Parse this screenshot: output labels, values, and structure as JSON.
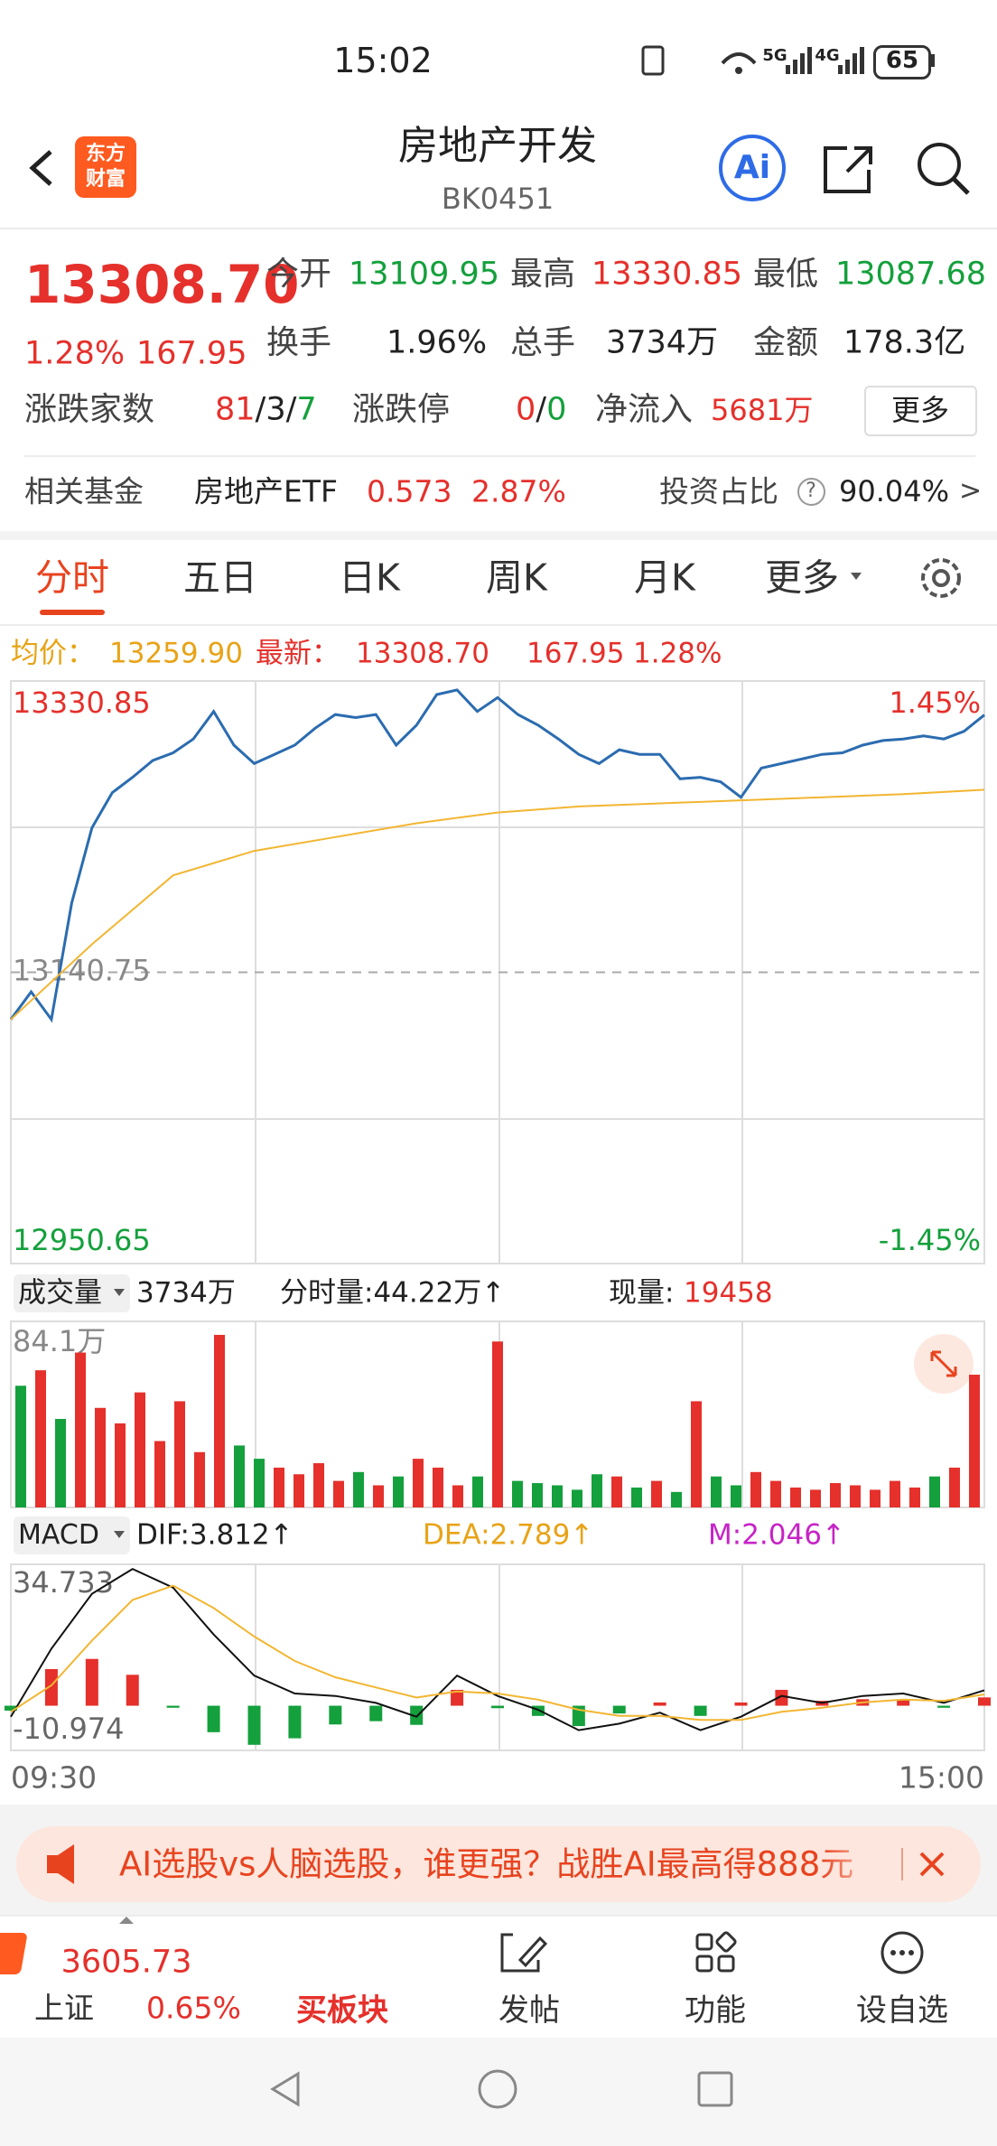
{
  "status_bar": {
    "time": "15:02",
    "network": [
      "5G",
      "4G"
    ],
    "battery": "65"
  },
  "header": {
    "logo": [
      "东方",
      "财富"
    ],
    "title": "房地产开发",
    "code": "BK0451",
    "ai_button": "Ai"
  },
  "quote": {
    "price": "13308.70",
    "change_pct": "1.28%",
    "change": "167.95",
    "open": {
      "label": "今开",
      "value": "13109.95"
    },
    "high": {
      "label": "最高",
      "value": "13330.85"
    },
    "low": {
      "label": "最低",
      "value": "13087.68"
    },
    "turnover": {
      "label": "换手",
      "value": "1.96%"
    },
    "volume": {
      "label": "总手",
      "value": "3734万"
    },
    "amount": {
      "label": "金额",
      "value": "178.3亿"
    },
    "breadth": {
      "label": "涨跌家数",
      "parts": [
        "81",
        "/",
        "3",
        "/",
        "7"
      ]
    },
    "limits": {
      "label": "涨跌停",
      "parts": [
        "0",
        "/",
        "0"
      ]
    },
    "net_inflow": {
      "label": "净流入",
      "value": "5681万"
    },
    "more_button": "更多"
  },
  "fund": {
    "label": "相关基金",
    "name": "房地产ETF",
    "price": "0.573",
    "change_pct": "2.87%",
    "share_label": "投资占比",
    "help": "?",
    "share": "90.04%",
    "arrow": ">"
  },
  "tabs": {
    "items": [
      "分时",
      "五日",
      "日K",
      "周K",
      "月K",
      "更多"
    ],
    "active": 0
  },
  "info_row": {
    "avg_label": "均价：",
    "avg": "13259.90",
    "last_label": "最新：",
    "last": "13308.70",
    "change": "167.95",
    "change_pct": "1.28%"
  },
  "volume_header": {
    "selector": "成交量",
    "total": "3734万",
    "minute": "分时量:44.22万↑",
    "current_label": "现量:",
    "current": "19458"
  },
  "macd_header": {
    "selector": "MACD",
    "dif": "DIF:3.812↑",
    "dea": "DEA:2.789↑",
    "m": "M:2.046↑"
  },
  "time_axis": [
    "09:30",
    "15:00"
  ],
  "ad": {
    "text": "AI选股vs人脑选股，谁更强？战胜AI最高得888元"
  },
  "bottom_nav": {
    "index": {
      "name": "上证",
      "value": "3605.73",
      "change_pct": "0.65%"
    },
    "items": [
      "买板块",
      "发帖",
      "功能",
      "设自选"
    ],
    "active": 0
  },
  "chart_data": [
    {
      "type": "line",
      "ylim": [
        12950.65,
        13330.85
      ],
      "yticks": [
        12950.65,
        13140.75,
        13330.85
      ],
      "y2lim": [
        -1.45,
        1.45
      ],
      "y2ticks": [
        {
          "value": -1.45,
          "label": "-1.45%"
        },
        {
          "value": 1.45,
          "label": "1.45%"
        }
      ],
      "up_color": "#e5302b",
      "down_color": "#14a03c",
      "series": [
        {
          "color": "#2b6cb0",
          "values": [
            13110,
            13128,
            13110,
            13186,
            13235,
            13258,
            13268,
            13279,
            13284,
            13293,
            13311,
            13289,
            13277,
            13283,
            13289,
            13300,
            13309,
            13307,
            13309,
            13289,
            13302,
            13322,
            13325,
            13311,
            13320,
            13309,
            13302,
            13293,
            13283,
            13277,
            13286,
            13283,
            13283,
            13267,
            13268,
            13265,
            13255,
            13274,
            13277,
            13280,
            13283,
            13284,
            13289,
            13292,
            13293,
            13295,
            13293,
            13298,
            13308.7
          ]
        },
        {
          "color": "#f2b632",
          "values": [
            13110,
            13159,
            13204,
            13220,
            13229,
            13238,
            13245,
            13249,
            13251,
            13253,
            13255,
            13257,
            13259.9
          ]
        }
      ]
    },
    {
      "type": "bar",
      "ylim": [
        0,
        84.1
      ],
      "yticks": [
        {
          "value": 84.1,
          "label": "84.1万"
        }
      ],
      "values": [
        55,
        62,
        40,
        70,
        45,
        38,
        52,
        30,
        48,
        25,
        78,
        28,
        22,
        18,
        15,
        20,
        12,
        16,
        10,
        14,
        22,
        18,
        10,
        14,
        75,
        12,
        11,
        10,
        8,
        15,
        14,
        9,
        12,
        7,
        48,
        14,
        10,
        16,
        12,
        9,
        8,
        11,
        10,
        8,
        12,
        9,
        14,
        18,
        60
      ]
    },
    {
      "type": "macd",
      "ylim": [
        -10.974,
        34.733
      ],
      "yticks": [
        -10.974,
        34.733
      ],
      "series": [
        {
          "color": "#111111",
          "values": [
            -2.7,
            14,
            27.5,
            33.6,
            29,
            17.5,
            7.4,
            3,
            2.4,
            0.7,
            -2.7,
            7.4,
            2.4,
            -1,
            -6,
            -4.4,
            -1.7,
            -6,
            -2.7,
            2.4,
            0.7,
            2.4,
            3,
            0.7,
            3.812
          ]
        },
        {
          "color": "#f2b632",
          "values": [
            -1.5,
            5,
            16,
            26,
            29.5,
            24,
            17,
            11,
            7,
            4.5,
            2,
            3.5,
            3,
            1.5,
            -1,
            -2.5,
            -2.5,
            -3.5,
            -3.5,
            -1.5,
            -0.5,
            0.8,
            1.5,
            1.2,
            2.789
          ]
        }
      ],
      "bars": [
        -1.2,
        9,
        11.5,
        7.6,
        -0.5,
        -6.5,
        -9.6,
        -8,
        -4.6,
        -3.8,
        -4.7,
        3.9,
        -0.6,
        -2.5,
        -5,
        -1.9,
        0.8,
        -2.5,
        0.8,
        3.9,
        1.2,
        1.6,
        1.5,
        -0.5,
        2.046
      ]
    }
  ]
}
